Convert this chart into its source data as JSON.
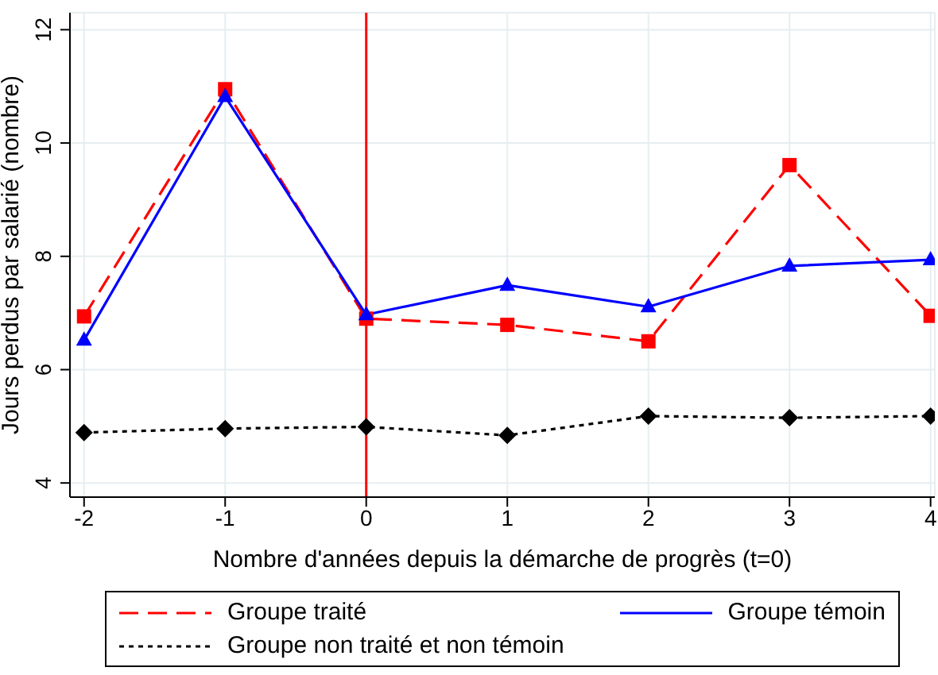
{
  "chart_data": {
    "type": "line",
    "xlabel": "Nombre d'années depuis la démarche de progrès (t=0)",
    "ylabel": "Jours perdus par salarié (nombre)",
    "x": [
      -2,
      -1,
      0,
      1,
      2,
      3,
      4
    ],
    "series": [
      {
        "name": "Groupe traité",
        "color": "#ff0000",
        "marker": "square",
        "line_style": "dashed",
        "values": [
          6.94,
          10.95,
          6.9,
          6.79,
          6.5,
          9.61,
          6.95
        ]
      },
      {
        "name": "Groupe témoin",
        "color": "#0000ff",
        "marker": "triangle",
        "line_style": "solid",
        "values": [
          6.52,
          10.82,
          6.97,
          7.49,
          7.11,
          7.83,
          7.94
        ]
      },
      {
        "name": "Groupe non traité et non témoin",
        "color": "#000000",
        "marker": "diamond",
        "line_style": "dotted",
        "values": [
          4.89,
          4.96,
          4.99,
          4.84,
          5.18,
          5.15,
          5.18
        ]
      }
    ],
    "xlim": [
      -2.1,
      4.03
    ],
    "xticks": [
      -2,
      -1,
      0,
      1,
      2,
      3,
      4
    ],
    "ylim": [
      3.75,
      12.3
    ],
    "yticks": [
      4,
      6,
      8,
      10,
      12
    ],
    "ref_lines": [
      {
        "axis": "x",
        "value": 0,
        "color": "#ff0000"
      }
    ],
    "grid": true,
    "legend": "bottom"
  }
}
